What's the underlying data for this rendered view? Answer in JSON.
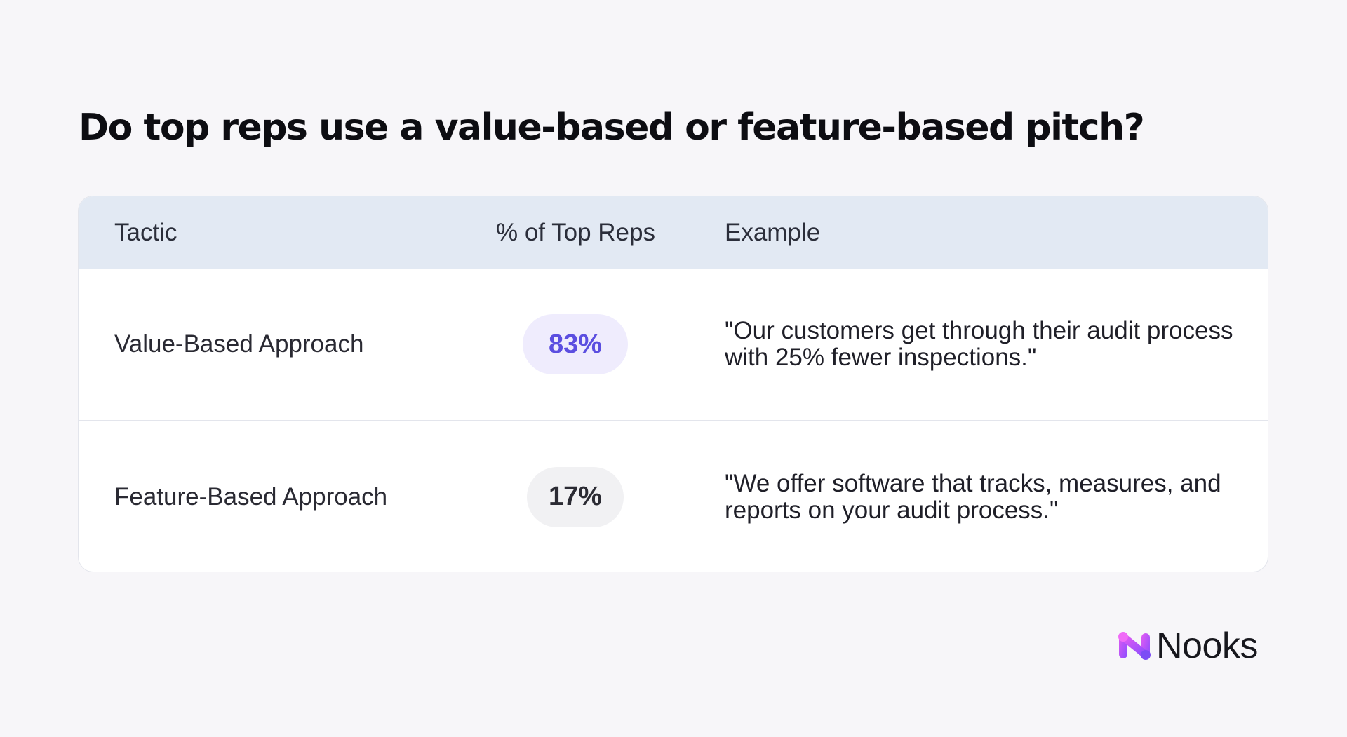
{
  "title": "Do top reps use a value-based or feature-based pitch?",
  "chart_data": {
    "type": "table",
    "columns": [
      "Tactic",
      "% of Top Reps",
      "Example"
    ],
    "rows": [
      {
        "tactic": "Value-Based Approach",
        "percent": "83%",
        "percent_value": 83,
        "example": "\"Our customers get through their audit process with 25% fewer inspections.\""
      },
      {
        "tactic": "Feature-Based Approach",
        "percent": "17%",
        "percent_value": 17,
        "example": "\"We offer software that tracks, measures, and reports on your audit process.\""
      }
    ]
  },
  "colors": {
    "background": "#f7f6f9",
    "header_bg": "#e2e9f3",
    "highlight_pill_bg": "#efecfd",
    "highlight_pill_text": "#5b4ee0",
    "neutral_pill_bg": "#f1f1f3",
    "brand_gradient_start": "#e35bf2",
    "brand_gradient_end": "#8a4dff"
  },
  "brand": {
    "name": "Nooks",
    "icon": "nooks-logo-icon"
  }
}
